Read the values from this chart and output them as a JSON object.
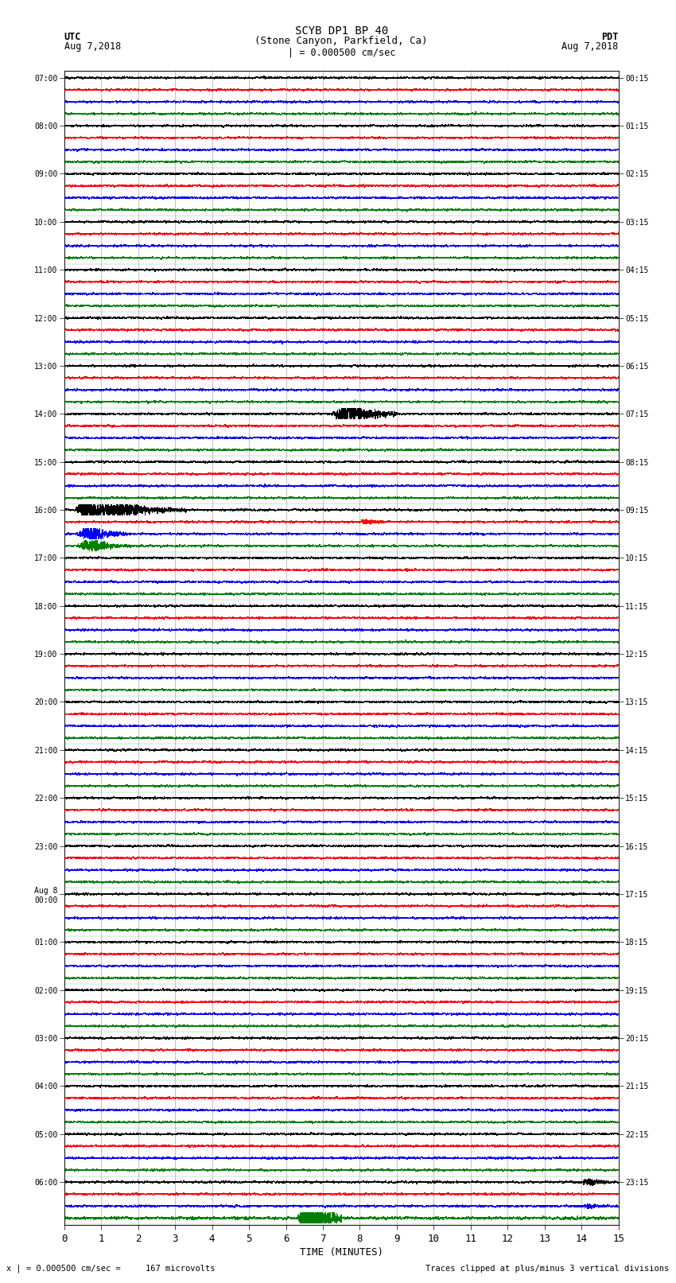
{
  "title_line1": "SCYB DP1 BP 40",
  "title_line2": "(Stone Canyon, Parkfield, Ca)",
  "scale_text": "| = 0.000500 cm/sec",
  "left_label_top": "UTC",
  "left_label_date": "Aug 7,2018",
  "right_label_top": "PDT",
  "right_label_date": "Aug 7,2018",
  "bottom_label": "TIME (MINUTES)",
  "footer_left": "x | = 0.000500 cm/sec =     167 microvolts",
  "footer_right": "Traces clipped at plus/minus 3 vertical divisions",
  "xlabel_ticks": [
    0,
    1,
    2,
    3,
    4,
    5,
    6,
    7,
    8,
    9,
    10,
    11,
    12,
    13,
    14,
    15
  ],
  "colors": [
    "black",
    "red",
    "blue",
    "green"
  ],
  "utc_times": [
    "07:00",
    "08:00",
    "09:00",
    "10:00",
    "11:00",
    "12:00",
    "13:00",
    "14:00",
    "15:00",
    "16:00",
    "17:00",
    "18:00",
    "19:00",
    "20:00",
    "21:00",
    "22:00",
    "23:00",
    "Aug 8\n00:00",
    "01:00",
    "02:00",
    "03:00",
    "04:00",
    "05:00",
    "06:00"
  ],
  "pdt_times": [
    "00:15",
    "01:15",
    "02:15",
    "03:15",
    "04:15",
    "05:15",
    "06:15",
    "07:15",
    "08:15",
    "09:15",
    "10:15",
    "11:15",
    "12:15",
    "13:15",
    "14:15",
    "15:15",
    "16:15",
    "17:15",
    "18:15",
    "19:15",
    "20:15",
    "21:15",
    "22:15",
    "23:15"
  ],
  "n_rows": 24,
  "n_colors": 4,
  "samples_per_row": 3600,
  "bg_color": "white",
  "trace_lw": 0.3,
  "grid_color": "#aaaaaa",
  "grid_lw": 0.5
}
